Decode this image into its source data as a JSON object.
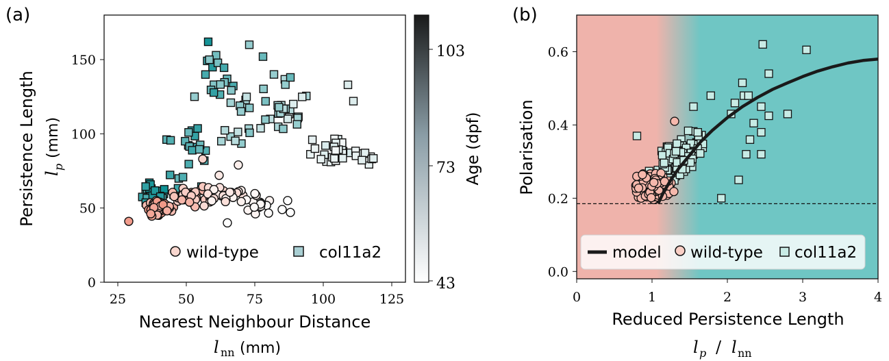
{
  "chart_data": [
    {
      "panel_label": "(a)",
      "type": "scatter",
      "xlabel": "Nearest Neighbour Distance",
      "xlabel_math": "l",
      "xlabel_sub": "nn",
      "xlabel_unit": "(mm)",
      "ylabel": "Persistence Length",
      "ylabel_math": "l",
      "ylabel_sub": "p",
      "ylabel_unit": "(mm)",
      "xlim": [
        20,
        130
      ],
      "ylim": [
        0,
        180
      ],
      "xticks": [
        "25",
        "50",
        "75",
        "100",
        "125"
      ],
      "yticks": [
        "0",
        "50",
        "100",
        "150"
      ],
      "colorbar": {
        "label": "Age (dpf)",
        "range": [
          43,
          113
        ],
        "ticks": [
          "43",
          "73",
          "103"
        ]
      },
      "legend": {
        "position": "lower-right",
        "entries": [
          "wild-type",
          "col11a2"
        ]
      },
      "series": [
        {
          "name": "wild-type",
          "marker": "circle",
          "points": "wt_points"
        },
        {
          "name": "col11a2",
          "marker": "square",
          "points": "col_points"
        }
      ]
    },
    {
      "panel_label": "(b)",
      "type": "scatter",
      "xlabel": "Reduced Persistence Length",
      "xlabel_math": "lp / lnn",
      "ylabel": "Polarisation",
      "xlim": [
        0,
        4
      ],
      "ylim": [
        -0.02,
        0.7
      ],
      "xticks": [
        "0",
        "1",
        "2",
        "3",
        "4"
      ],
      "yticks": [
        "0.0",
        "0.2",
        "0.4",
        "0.6"
      ],
      "reference_line": 0.185,
      "background": {
        "left_color": "#efb3ab",
        "right_color": "#6fc6c4",
        "transition": [
          1.05,
          1.65
        ]
      },
      "legend": {
        "position": "lower-center",
        "entries": [
          "model",
          "wild-type",
          "col11a2"
        ]
      },
      "model_curve": {
        "x": [
          1.08,
          1.15,
          1.25,
          1.35,
          1.45,
          1.55,
          1.65,
          1.8,
          2.0,
          2.2,
          2.4,
          2.6,
          2.8,
          3.0,
          3.2,
          3.4,
          3.6,
          3.8,
          4.0
        ],
        "y": [
          0.185,
          0.215,
          0.25,
          0.28,
          0.305,
          0.33,
          0.355,
          0.385,
          0.42,
          0.45,
          0.475,
          0.497,
          0.515,
          0.532,
          0.547,
          0.559,
          0.569,
          0.576,
          0.58
        ]
      },
      "col_outliers": [
        [
          2.47,
          0.62
        ],
        [
          3.05,
          0.605
        ],
        [
          2.55,
          0.54
        ],
        [
          2.2,
          0.515
        ],
        [
          2.22,
          0.48
        ],
        [
          2.28,
          0.48
        ],
        [
          2.1,
          0.46
        ],
        [
          2.45,
          0.45
        ],
        [
          2.55,
          0.425
        ],
        [
          2.8,
          0.43
        ],
        [
          2.45,
          0.38
        ],
        [
          2.35,
          0.405
        ],
        [
          2.25,
          0.32
        ],
        [
          2.45,
          0.32
        ],
        [
          2.15,
          0.25
        ],
        [
          1.92,
          0.2
        ],
        [
          0.8,
          0.37
        ],
        [
          1.55,
          0.45
        ],
        [
          1.78,
          0.48
        ],
        [
          2.05,
          0.43
        ],
        [
          2.3,
          0.36
        ]
      ]
    }
  ],
  "colors": {
    "wild_type_light": "#fbe7e2",
    "wild_type_dark": "#f0917f",
    "col_light": "#f4f7f7",
    "col_dark": "#0a8f93",
    "edge": "#111111",
    "model": "#1a1a1a"
  }
}
